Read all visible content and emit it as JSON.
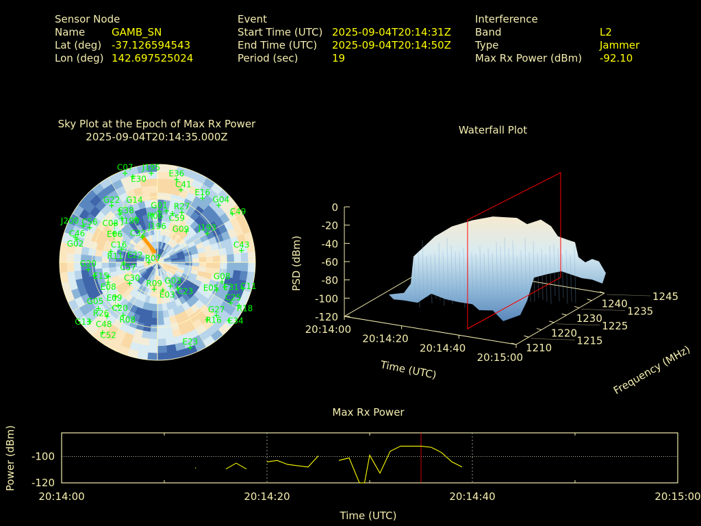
{
  "header": {
    "sensor": {
      "title": "Sensor Node",
      "name_label": "Name",
      "name": "GAMB_SN",
      "lat_label": "Lat (deg)",
      "lat": "-37.126594543",
      "lon_label": "Lon (deg)",
      "lon": "142.697525024"
    },
    "event": {
      "title": "Event",
      "start_label": "Start Time (UTC)",
      "start": "2025-09-04T20:14:31Z",
      "end_label": "End Time (UTC)",
      "end": "2025-09-04T20:14:50Z",
      "period_label": "Period (sec)",
      "period": "19"
    },
    "interference": {
      "title": "Interference",
      "band_label": "Band",
      "band": "L2",
      "type_label": "Type",
      "type": "Jammer",
      "power_label": "Max Rx Power (dBm)",
      "power": "-92.10"
    }
  },
  "colors": {
    "label": "#f5eeb0",
    "value": "#ffff00",
    "satellite": "#00ff00",
    "jammer": "#ff9900",
    "marker": "#ff0000"
  },
  "chart_data": [
    {
      "type": "scatter",
      "subtype": "polar-sky-plot",
      "title": "Sky Plot at the Epoch of Max Rx Power",
      "subtitle": "2025-09-04T20:14:35.000Z",
      "rlim_elevation_deg": [
        0,
        90
      ],
      "satellites": [
        {
          "id": "C07",
          "az": 340,
          "el": 3
        },
        {
          "id": "E30",
          "az": 344,
          "el": 8
        },
        {
          "id": "J195",
          "az": 356,
          "el": 8
        },
        {
          "id": "E36",
          "az": 13,
          "el": 12
        },
        {
          "id": "C41",
          "az": 18,
          "el": 20
        },
        {
          "id": "E16",
          "az": 35,
          "el": 18
        },
        {
          "id": "G04",
          "az": 47,
          "el": 13
        },
        {
          "id": "C49",
          "az": 57,
          "el": 8
        },
        {
          "id": "R27",
          "az": 26,
          "el": 39
        },
        {
          "id": "G01",
          "az": 2,
          "el": 43
        },
        {
          "id": "C59",
          "az": 17,
          "el": 43
        },
        {
          "id": "R06",
          "az": 10,
          "el": 42
        },
        {
          "id": "G22",
          "az": 321,
          "el": 23
        },
        {
          "id": "C38",
          "az": 324,
          "el": 31
        },
        {
          "id": "J199",
          "az": 334,
          "el": 45
        },
        {
          "id": "C03",
          "az": 321,
          "el": 38
        },
        {
          "id": "G14",
          "az": 322,
          "el": 34
        },
        {
          "id": "E06",
          "az": 312,
          "el": 37
        },
        {
          "id": "J196",
          "az": 354,
          "el": 46
        },
        {
          "id": "C32",
          "az": 329,
          "el": 63
        },
        {
          "id": "C46",
          "az": 286,
          "el": 13
        },
        {
          "id": "C56",
          "az": 297,
          "el": 20
        },
        {
          "id": "J200",
          "az": 296,
          "el": 14
        },
        {
          "id": "G02",
          "az": 287,
          "el": 11
        },
        {
          "id": "C16",
          "az": 304,
          "el": 42
        },
        {
          "id": "R11",
          "az": 283,
          "el": 46
        },
        {
          "id": "E22",
          "az": 290,
          "el": 55
        },
        {
          "id": "C57",
          "az": 269,
          "el": 59
        },
        {
          "id": "R07",
          "az": 270,
          "el": 82
        },
        {
          "id": "G20",
          "az": 264,
          "el": 26
        },
        {
          "id": "E15",
          "az": 258,
          "el": 31
        },
        {
          "id": "E08",
          "az": 254,
          "el": 43
        },
        {
          "id": "E09",
          "az": 248,
          "el": 41
        },
        {
          "id": "C30",
          "az": 233,
          "el": 58
        },
        {
          "id": "C20",
          "az": 231,
          "el": 40
        },
        {
          "id": "R08",
          "az": 213,
          "el": 32
        },
        {
          "id": "R26",
          "az": 222,
          "el": 36
        },
        {
          "id": "G05",
          "az": 232,
          "el": 21
        },
        {
          "id": "C48",
          "az": 223,
          "el": 22
        },
        {
          "id": "G13",
          "az": 229,
          "el": 7
        },
        {
          "id": "C52",
          "az": 218,
          "el": 8
        },
        {
          "id": "R09",
          "az": 187,
          "el": 65
        },
        {
          "id": "E03",
          "az": 169,
          "el": 64
        },
        {
          "id": "G03",
          "az": 151,
          "el": 65
        },
        {
          "id": "C23",
          "az": 142,
          "el": 60
        },
        {
          "id": "G08",
          "az": 107,
          "el": 28
        },
        {
          "id": "E31",
          "az": 110,
          "el": 24
        },
        {
          "id": "E05",
          "az": 115,
          "el": 30
        },
        {
          "id": "C11",
          "az": 107,
          "el": 8
        },
        {
          "id": "C25",
          "az": 119,
          "el": 13
        },
        {
          "id": "R18",
          "az": 118,
          "el": 5
        },
        {
          "id": "G27",
          "az": 132,
          "el": 17
        },
        {
          "id": "R16",
          "az": 139,
          "el": 20
        },
        {
          "id": "C34",
          "az": 129,
          "el": 5
        },
        {
          "id": "E23",
          "az": 159,
          "el": 6
        },
        {
          "id": "J193",
          "az": 60,
          "el": 37
        },
        {
          "id": "G09",
          "az": 43,
          "el": 51
        },
        {
          "id": "C43",
          "az": 82,
          "el": 12
        }
      ],
      "jammer_direction": {
        "az_range": [
          330,
          345
        ],
        "el_range": [
          63,
          80
        ]
      }
    },
    {
      "type": "surface",
      "title": "Waterfall Plot",
      "xlabel": "Time (UTC)",
      "ylabel": "Frequency (MHz)",
      "zlabel": "PSD (dBm)",
      "x_ticks": [
        "20:14:00",
        "20:14:20",
        "20:14:40",
        "20:15:00"
      ],
      "y_ticks": [
        "1210",
        "1215",
        "1220",
        "1225",
        "1230",
        "1235",
        "1240",
        "1245"
      ],
      "z_ticks": [
        "0",
        "-20",
        "-40",
        "-60",
        "-80",
        "-100",
        "-120"
      ],
      "zlim": [
        -120,
        0
      ],
      "marker_time": "20:14:35"
    },
    {
      "type": "line",
      "title": "Max Rx Power",
      "xlabel": "Time (UTC)",
      "ylabel": "Power (dBm)",
      "x_ticks": [
        "20:14:00",
        "20:14:20",
        "20:14:40",
        "20:15:00"
      ],
      "y_ticks": [
        "-100",
        "-120"
      ],
      "xlim": [
        "20:14:00",
        "20:15:00"
      ],
      "ylim": [
        -120,
        -82
      ],
      "marker_time": "20:14:35",
      "segments": [
        [
          [
            "20:14:13",
            -108.4
          ]
        ],
        [
          [
            "20:14:16",
            -109.5
          ],
          [
            "20:14:17",
            -105
          ],
          [
            "20:14:18",
            -109.5
          ]
        ],
        [
          [
            "20:14:20",
            -104
          ],
          [
            "20:14:21",
            -103
          ],
          [
            "20:14:22",
            -106
          ],
          [
            "20:14:24",
            -108
          ],
          [
            "20:14:25",
            -99.5
          ]
        ],
        [
          [
            "20:14:27",
            -103
          ],
          [
            "20:14:28",
            -101
          ],
          [
            "20:14:29",
            -120
          ],
          [
            "20:14:29.5",
            -120
          ],
          [
            "20:14:30",
            -99
          ],
          [
            "20:14:31",
            -112.6
          ],
          [
            "20:14:32",
            -96
          ],
          [
            "20:14:33",
            -92.1
          ],
          [
            "20:14:35",
            -92.1
          ],
          [
            "20:14:36",
            -93
          ],
          [
            "20:14:37",
            -97
          ],
          [
            "20:14:38",
            -104
          ],
          [
            "20:14:39",
            -108
          ]
        ]
      ]
    }
  ]
}
